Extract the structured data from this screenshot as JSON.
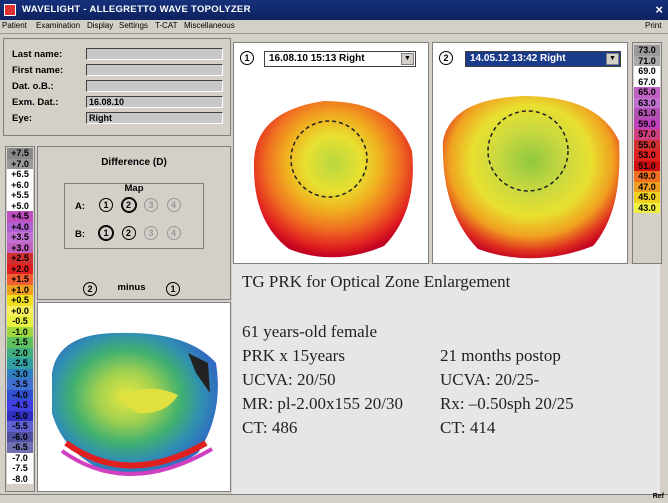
{
  "window": {
    "title": "WAVELIGHT - ALLEGRETTO WAVE TOPOLYZER",
    "close_glyph": "×"
  },
  "menu": [
    "Patient",
    "Examination",
    "Display",
    "Settings",
    "T-CAT",
    "Miscellaneous"
  ],
  "menu_right": "Print",
  "patient": {
    "last_name_label": "Last name:",
    "last_name": "",
    "first_name_label": "First name:",
    "first_name": "",
    "dob_label": "Dat. o.B.:",
    "dob": "",
    "exam_date_label": "Exm. Dat.:",
    "exam_date": "16.08.10",
    "eye_label": "Eye:",
    "eye": "Right"
  },
  "left_scale": [
    "+7.5",
    "+7.0",
    "+6.5",
    "+6.0",
    "+5.5",
    "+5.0",
    "+4.5",
    "+4.0",
    "+3.5",
    "+3.0",
    "+2.5",
    "+2.0",
    "+1.5",
    "+1.0",
    "+0.5",
    "+0.0",
    "-0.5",
    "-1.0",
    "-1.5",
    "-2.0",
    "-2.5",
    "-3.0",
    "-3.5",
    "-4.0",
    "-4.5",
    "-5.0",
    "-5.5",
    "-6.0",
    "-6.5",
    "-7.0",
    "-7.5",
    "-8.0"
  ],
  "left_scale_colors": [
    "#888",
    "#999",
    "#fff",
    "#fff",
    "#fff",
    "#fff",
    "#c04fc0",
    "#b060d0",
    "#c070d0",
    "#c060c0",
    "#d03030",
    "#e02020",
    "#f06030",
    "#f0a020",
    "#f0e020",
    "#f8f060",
    "#e8f040",
    "#a0d840",
    "#60c060",
    "#40b080",
    "#30a0a0",
    "#3080c0",
    "#4070d0",
    "#3050d0",
    "#4040e0",
    "#3030c0",
    "#6060d0",
    "#5050a0",
    "#7070b0",
    "#fff",
    "#fff",
    "#fff"
  ],
  "difference": {
    "title": "Difference (D)",
    "map_label": "Map",
    "row_a_label": "A:",
    "row_b_label": "B:",
    "options": [
      "1",
      "2",
      "3",
      "4"
    ],
    "minus_left": "2",
    "minus_label": "minus",
    "minus_right": "1"
  },
  "map1": {
    "number": "1",
    "date": "16.08.10  15:13 Right",
    "arrow": "▼"
  },
  "map2": {
    "number": "2",
    "date": "14.05.12  13:42 Right",
    "arrow": "▼"
  },
  "right_scale": [
    "73.0",
    "71.0",
    "69.0",
    "67.0",
    "65.0",
    "63.0",
    "61.0",
    "59.0",
    "57.0",
    "55.0",
    "53.0",
    "51.0",
    "49.0",
    "47.0",
    "45.0",
    "43.0"
  ],
  "right_scale_colors": [
    "#999",
    "#aaa",
    "#fff",
    "#fff",
    "#c060c0",
    "#c070d0",
    "#b050b0",
    "#c040c0",
    "#d04080",
    "#d03030",
    "#e02020",
    "#d01010",
    "#f07020",
    "#f0a020",
    "#f0d020",
    "#f0f040"
  ],
  "bottom_right_label": "Ref",
  "colors": {
    "titlebar": "#16307a",
    "overlay_bg": "#e6e6e6",
    "selected_dropdown": "#1a3a8a"
  },
  "overlay": {
    "title": "TG  PRK for Optical Zone Enlargement",
    "patient_desc": "61 years-old female",
    "left_col": [
      "PRK x 15years",
      "UCVA: 20/50",
      "MR: pl-2.00x155 20/30",
      "CT: 486"
    ],
    "right_col": [
      "21 months postop",
      "UCVA: 20/25-",
      "Rx: –0.50sph 20/25",
      "CT: 414"
    ]
  }
}
